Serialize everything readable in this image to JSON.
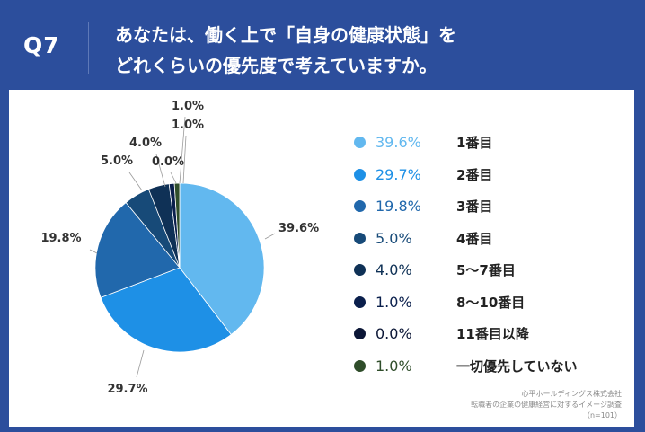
{
  "question": {
    "number": "Q7",
    "line1": "あなたは、働く上で「自身の健康状態」を",
    "line2": "どれくらいの優先度で考えていますか。"
  },
  "chart_data": {
    "type": "pie",
    "slices": [
      {
        "label": "1番目",
        "value": 39.6,
        "display": "39.6%",
        "color": "#62b8ef",
        "legend_text_color": "#62b8ef"
      },
      {
        "label": "2番目",
        "value": 29.7,
        "display": "29.7%",
        "color": "#1e90e6",
        "legend_text_color": "#1e90e6"
      },
      {
        "label": "3番目",
        "value": 19.8,
        "display": "19.8%",
        "color": "#2168ac",
        "legend_text_color": "#2168ac"
      },
      {
        "label": "4番目",
        "value": 5.0,
        "display": "5.0%",
        "color": "#174a78",
        "legend_text_color": "#174a78"
      },
      {
        "label": "5〜7番目",
        "value": 4.0,
        "display": "4.0%",
        "color": "#0f3156",
        "legend_text_color": "#0f3156"
      },
      {
        "label": "8〜10番目",
        "value": 1.0,
        "display": "1.0%",
        "color": "#0a1f4c",
        "legend_text_color": "#0a1f4c"
      },
      {
        "label": "11番目以降",
        "value": 0.0,
        "display": "0.0%",
        "color": "#0b1636",
        "legend_text_color": "#0b1636"
      },
      {
        "label": "一切優先していない",
        "value": 1.0,
        "display": "1.0%",
        "color": "#2f4d2a",
        "legend_text_color": "#2f4d2a"
      }
    ]
  },
  "source": {
    "line1": "心平ホールディングス株式会社",
    "line2": "転職者の企業の健康経営に対するイメージ調査",
    "line3": "（n=101）"
  }
}
